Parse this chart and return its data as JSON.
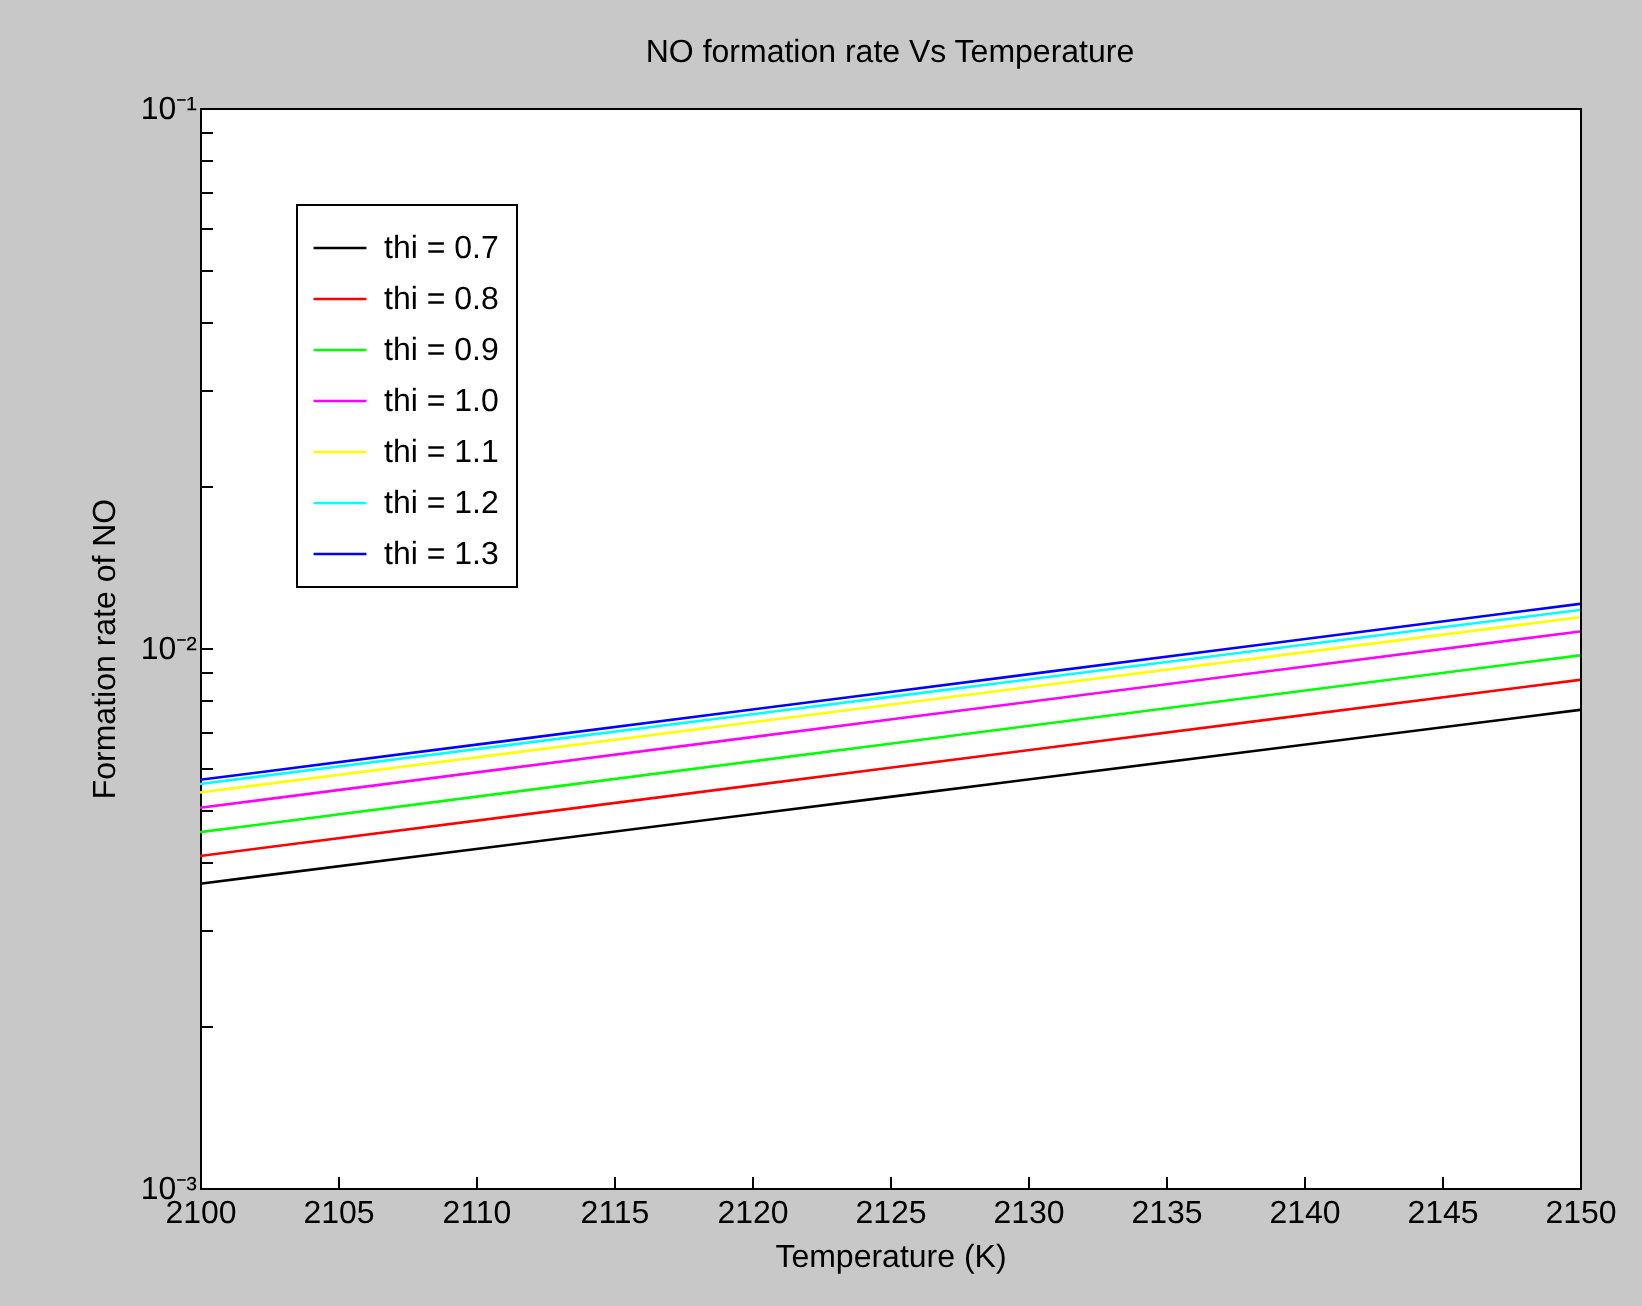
{
  "chart_data": {
    "type": "line",
    "title": "NO formation rate Vs Temperature",
    "xlabel": "Temperature (K)",
    "ylabel": "Formation rate of NO",
    "log": "y",
    "grid": false,
    "legend": "top left",
    "marker": "none",
    "line_style": "solid",
    "x": [
      2100,
      2125,
      2150
    ],
    "xlim": [
      2100,
      2150
    ],
    "xticks": [
      2100,
      2105,
      2110,
      2115,
      2120,
      2125,
      2130,
      2135,
      2140,
      2145,
      2150
    ],
    "ylim": [
      0.001,
      0.1
    ],
    "yticks": [
      {
        "value": 0.001,
        "label": "10⁻³"
      },
      {
        "value": 0.002,
        "label": null
      },
      {
        "value": 0.003,
        "label": null
      },
      {
        "value": 0.004,
        "label": null
      },
      {
        "value": 0.005,
        "label": null
      },
      {
        "value": 0.006,
        "label": null
      },
      {
        "value": 0.007,
        "label": null
      },
      {
        "value": 0.008,
        "label": null
      },
      {
        "value": 0.009,
        "label": null
      },
      {
        "value": 0.01,
        "label": "10⁻²"
      },
      {
        "value": 0.02,
        "label": null
      },
      {
        "value": 0.03,
        "label": null
      },
      {
        "value": 0.04,
        "label": null
      },
      {
        "value": 0.05,
        "label": null
      },
      {
        "value": 0.06,
        "label": null
      },
      {
        "value": 0.07,
        "label": null
      },
      {
        "value": 0.08,
        "label": null
      },
      {
        "value": 0.09,
        "label": null
      },
      {
        "value": 0.1,
        "label": "10⁻¹"
      }
    ],
    "series": [
      {
        "name": "thi = 0.7",
        "color": "#000000",
        "values": [
          0.00366,
          0.0053,
          0.00768
        ]
      },
      {
        "name": "thi = 0.8",
        "color": "#ff0000",
        "values": [
          0.00412,
          0.006,
          0.00873
        ]
      },
      {
        "name": "thi = 0.9",
        "color": "#00ff00",
        "values": [
          0.00456,
          0.00665,
          0.00969
        ]
      },
      {
        "name": "thi = 1.0",
        "color": "#ff00ff",
        "values": [
          0.00506,
          0.00737,
          0.01073
        ]
      },
      {
        "name": "thi = 1.1",
        "color": "#ffff00",
        "values": [
          0.0054,
          0.00785,
          0.0114
        ]
      },
      {
        "name": "thi = 1.2",
        "color": "#00ffff",
        "values": [
          0.0056,
          0.00812,
          0.01176
        ]
      },
      {
        "name": "thi = 1.3",
        "color": "#0000ff",
        "values": [
          0.0057,
          0.00829,
          0.01207
        ]
      }
    ]
  }
}
